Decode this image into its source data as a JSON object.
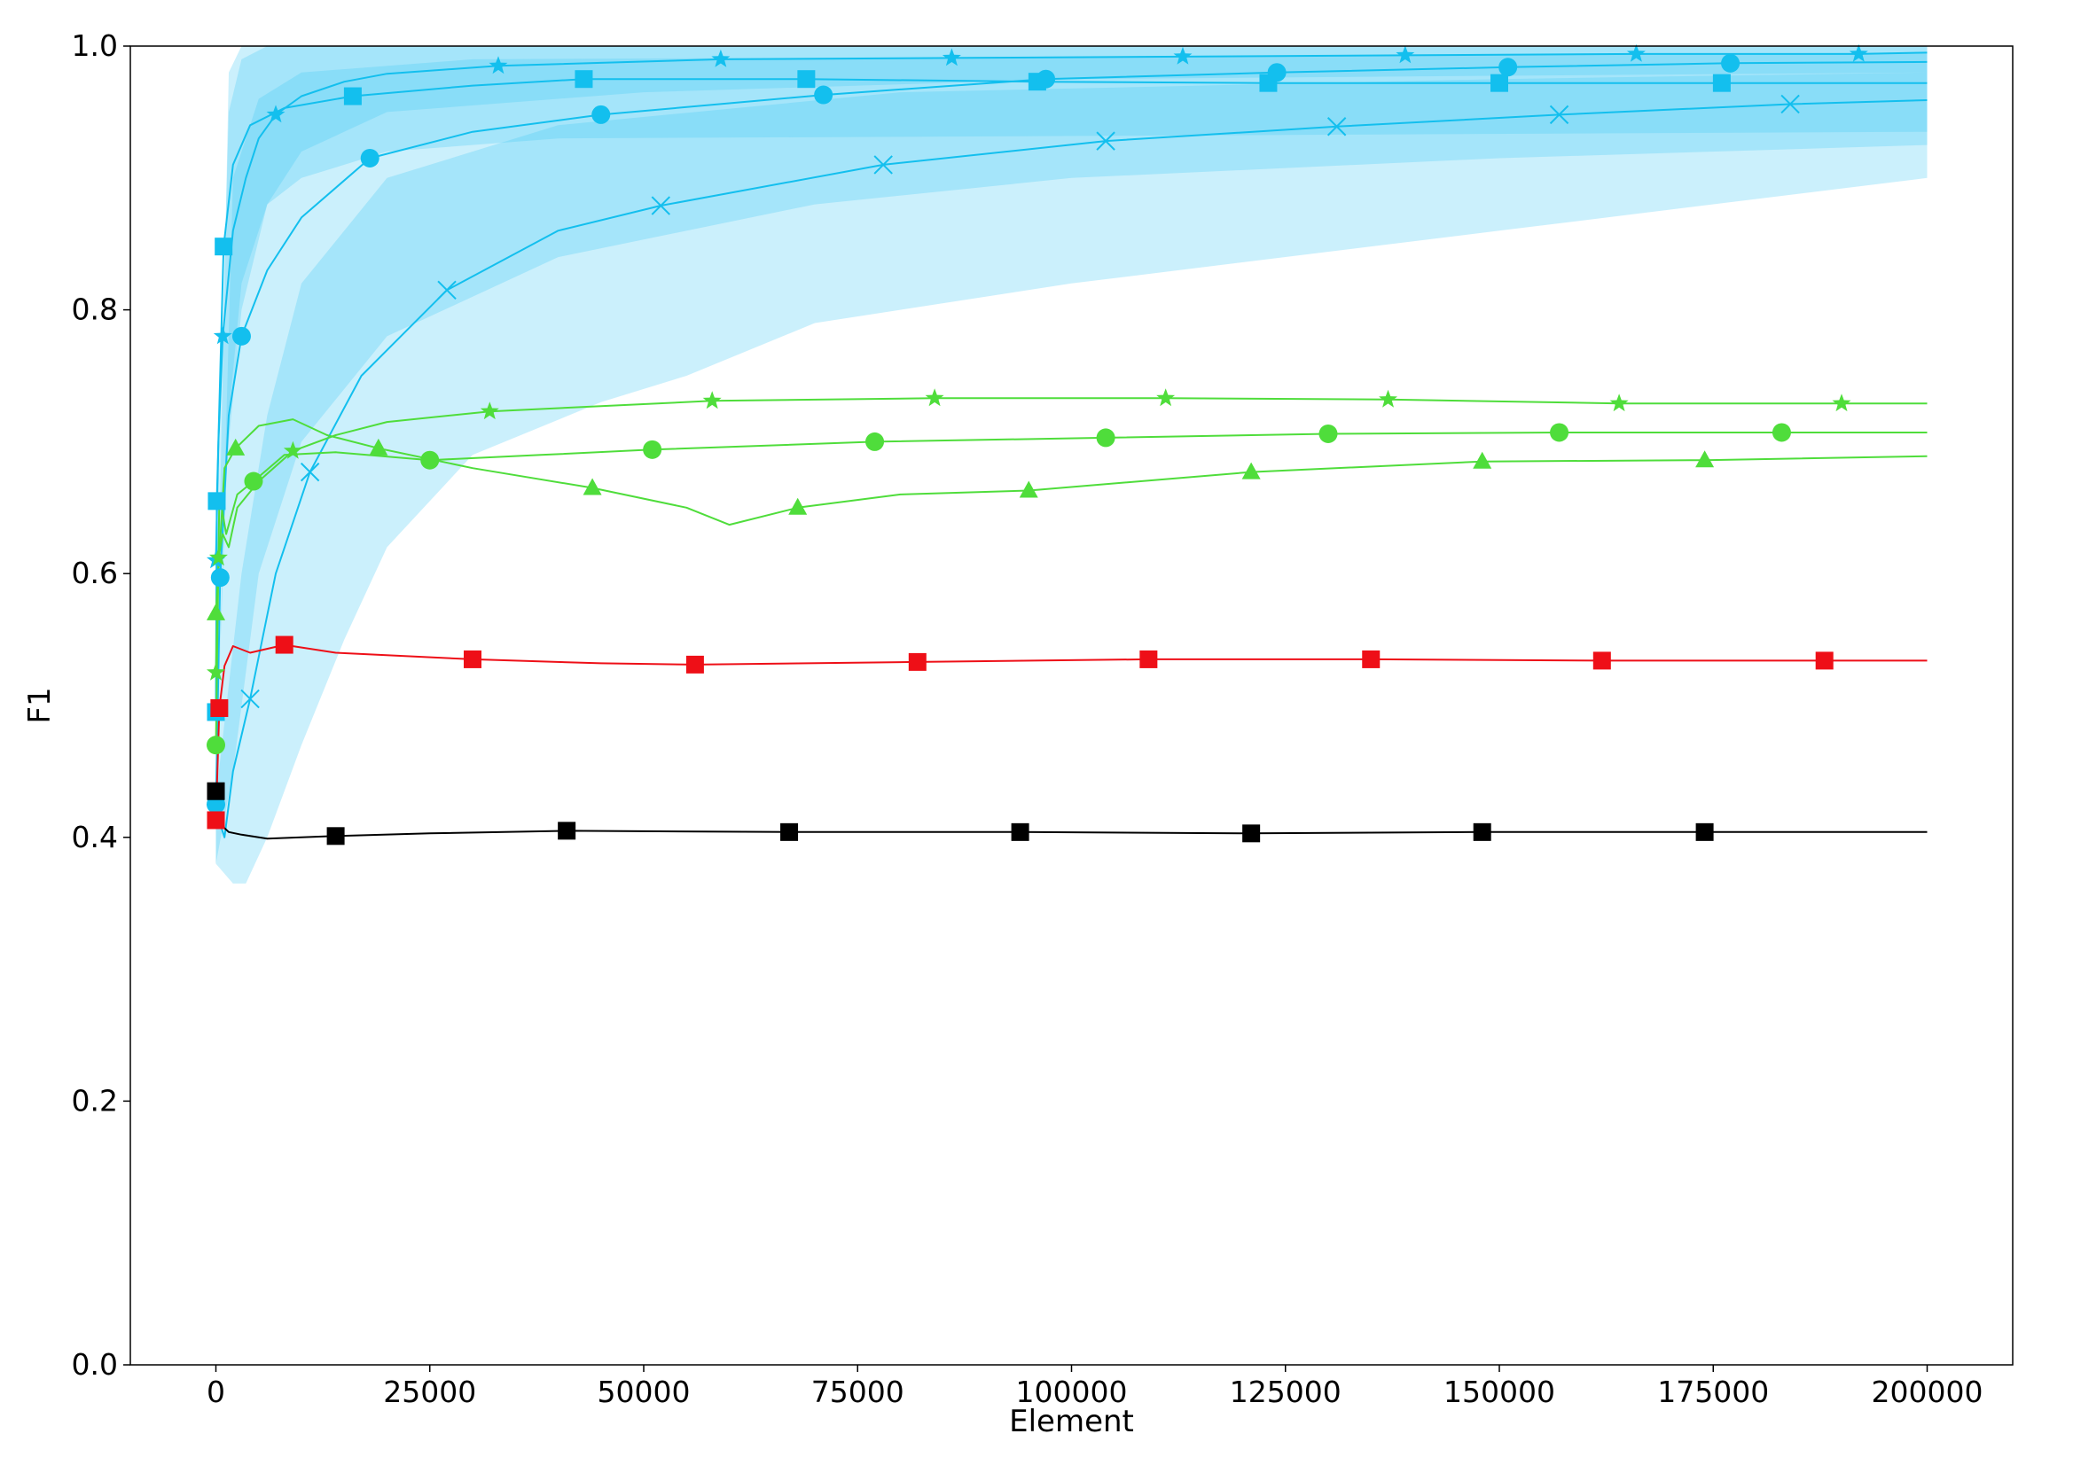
{
  "chart_data": {
    "type": "line",
    "title": "",
    "xlabel": "Element",
    "ylabel": "F1",
    "xlim": [
      -10000,
      210000
    ],
    "ylim": [
      0.0,
      1.0
    ],
    "x_ticks": [
      0,
      25000,
      50000,
      75000,
      100000,
      125000,
      150000,
      175000,
      200000
    ],
    "y_ticks": [
      0.0,
      0.2,
      0.4,
      0.6,
      0.8,
      1.0
    ],
    "x_tick_labels": [
      "0",
      "25000",
      "50000",
      "75000",
      "100000",
      "125000",
      "150000",
      "175000",
      "200000"
    ],
    "y_tick_labels": [
      "0.0",
      "0.2",
      "0.4",
      "0.6",
      "0.8",
      "1.0"
    ],
    "grid": false,
    "legend": false,
    "colors": {
      "blue": "#13bfee",
      "blue_band": "#40c8f5",
      "green": "#4fdd3b",
      "red": "#ee0f17",
      "black": "#000000"
    },
    "series": [
      {
        "color": "#13bfee",
        "marker": "star",
        "points": [
          [
            0,
            0.61
          ],
          [
            300,
            0.7
          ],
          [
            800,
            0.78
          ],
          [
            2000,
            0.86
          ],
          [
            3500,
            0.9
          ],
          [
            5000,
            0.93
          ],
          [
            7000,
            0.948
          ],
          [
            10000,
            0.962
          ],
          [
            15000,
            0.973
          ],
          [
            20000,
            0.979
          ],
          [
            33000,
            0.985
          ],
          [
            59000,
            0.99
          ],
          [
            86000,
            0.991
          ],
          [
            113000,
            0.992
          ],
          [
            139000,
            0.993
          ],
          [
            166000,
            0.994
          ],
          [
            192000,
            0.994
          ],
          [
            200000,
            0.995
          ]
        ],
        "markers_x": [
          0,
          800,
          7000,
          33000,
          59000,
          86000,
          113000,
          139000,
          166000,
          192000
        ],
        "band": {
          "upper": [
            [
              0,
              0.6
            ],
            [
              1500,
              0.95
            ],
            [
              3000,
              0.99
            ],
            [
              6000,
              1.0
            ],
            [
              200000,
              1.0
            ]
          ],
          "lower": [
            [
              0,
              0.55
            ],
            [
              1500,
              0.7
            ],
            [
              3000,
              0.8
            ],
            [
              6000,
              0.88
            ],
            [
              10000,
              0.92
            ],
            [
              20000,
              0.95
            ],
            [
              50000,
              0.965
            ],
            [
              100000,
              0.975
            ],
            [
              200000,
              0.98
            ]
          ]
        }
      },
      {
        "color": "#13bfee",
        "marker": "square",
        "points": [
          [
            0,
            0.495
          ],
          [
            100,
            0.655
          ],
          [
            900,
            0.848
          ],
          [
            2000,
            0.91
          ],
          [
            4000,
            0.94
          ],
          [
            8000,
            0.953
          ],
          [
            16000,
            0.962
          ],
          [
            30000,
            0.97
          ],
          [
            43000,
            0.975
          ],
          [
            69000,
            0.975
          ],
          [
            96000,
            0.973
          ],
          [
            123000,
            0.972
          ],
          [
            150000,
            0.972
          ],
          [
            176000,
            0.972
          ],
          [
            200000,
            0.972
          ]
        ],
        "markers_x": [
          0,
          100,
          900,
          16000,
          43000,
          69000,
          96000,
          123000,
          150000,
          176000
        ],
        "band": {
          "upper": [
            [
              0,
              0.5
            ],
            [
              1500,
              0.98
            ],
            [
              3000,
              1.0
            ],
            [
              200000,
              1.0
            ]
          ],
          "lower": [
            [
              0,
              0.45
            ],
            [
              1500,
              0.72
            ],
            [
              3000,
              0.82
            ],
            [
              6000,
              0.88
            ],
            [
              10000,
              0.9
            ],
            [
              20000,
              0.92
            ],
            [
              40000,
              0.93
            ],
            [
              200000,
              0.935
            ]
          ]
        }
      },
      {
        "color": "#13bfee",
        "marker": "circle",
        "points": [
          [
            0,
            0.425
          ],
          [
            500,
            0.597
          ],
          [
            1500,
            0.72
          ],
          [
            3000,
            0.78
          ],
          [
            6000,
            0.83
          ],
          [
            10000,
            0.87
          ],
          [
            18000,
            0.915
          ],
          [
            30000,
            0.935
          ],
          [
            45000,
            0.948
          ],
          [
            71000,
            0.963
          ],
          [
            97000,
            0.975
          ],
          [
            124000,
            0.98
          ],
          [
            151000,
            0.984
          ],
          [
            177000,
            0.987
          ],
          [
            200000,
            0.988
          ]
        ],
        "markers_x": [
          0,
          500,
          3000,
          18000,
          45000,
          71000,
          97000,
          124000,
          151000,
          177000
        ],
        "band": {
          "upper": [
            [
              0,
              0.43
            ],
            [
              2000,
              0.9
            ],
            [
              5000,
              0.96
            ],
            [
              10000,
              0.98
            ],
            [
              30000,
              0.99
            ],
            [
              200000,
              0.995
            ]
          ],
          "lower": [
            [
              0,
              0.38
            ],
            [
              2000,
              0.45
            ],
            [
              5000,
              0.6
            ],
            [
              10000,
              0.7
            ],
            [
              20000,
              0.78
            ],
            [
              40000,
              0.84
            ],
            [
              70000,
              0.88
            ],
            [
              100000,
              0.9
            ],
            [
              150000,
              0.915
            ],
            [
              200000,
              0.925
            ]
          ]
        }
      },
      {
        "color": "#13bfee",
        "marker": "x",
        "points": [
          [
            0,
            0.42
          ],
          [
            1000,
            0.4
          ],
          [
            2000,
            0.45
          ],
          [
            4000,
            0.505
          ],
          [
            7000,
            0.6
          ],
          [
            11000,
            0.677
          ],
          [
            17000,
            0.75
          ],
          [
            27000,
            0.815
          ],
          [
            40000,
            0.86
          ],
          [
            52000,
            0.879
          ],
          [
            78000,
            0.91
          ],
          [
            104000,
            0.928
          ],
          [
            131000,
            0.939
          ],
          [
            157000,
            0.948
          ],
          [
            184000,
            0.956
          ],
          [
            200000,
            0.959
          ]
        ],
        "markers_x": [
          4000,
          11000,
          27000,
          52000,
          78000,
          104000,
          131000,
          157000,
          184000
        ],
        "band": {
          "upper": [
            [
              0,
              0.43
            ],
            [
              3000,
              0.6
            ],
            [
              6000,
              0.72
            ],
            [
              10000,
              0.82
            ],
            [
              20000,
              0.9
            ],
            [
              40000,
              0.94
            ],
            [
              80000,
              0.965
            ],
            [
              150000,
              0.975
            ],
            [
              200000,
              0.98
            ]
          ],
          "lower": [
            [
              0,
              0.38
            ],
            [
              2000,
              0.365
            ],
            [
              3500,
              0.365
            ],
            [
              6000,
              0.4
            ],
            [
              10000,
              0.47
            ],
            [
              15000,
              0.55
            ],
            [
              20000,
              0.62
            ],
            [
              30000,
              0.69
            ],
            [
              45000,
              0.73
            ],
            [
              55000,
              0.75
            ],
            [
              70000,
              0.79
            ],
            [
              100000,
              0.82
            ],
            [
              150000,
              0.86
            ],
            [
              200000,
              0.9
            ]
          ]
        }
      },
      {
        "color": "#4fdd3b",
        "marker": "star",
        "points": [
          [
            0,
            0.525
          ],
          [
            300,
            0.612
          ],
          [
            800,
            0.63
          ],
          [
            1500,
            0.62
          ],
          [
            2500,
            0.65
          ],
          [
            5000,
            0.67
          ],
          [
            9000,
            0.693
          ],
          [
            14000,
            0.705
          ],
          [
            20000,
            0.715
          ],
          [
            32000,
            0.723
          ],
          [
            45000,
            0.727
          ],
          [
            58000,
            0.731
          ],
          [
            84000,
            0.733
          ],
          [
            111000,
            0.733
          ],
          [
            137000,
            0.732
          ],
          [
            164000,
            0.729
          ],
          [
            190000,
            0.729
          ],
          [
            200000,
            0.729
          ]
        ],
        "markers_x": [
          0,
          300,
          9000,
          32000,
          58000,
          84000,
          111000,
          137000,
          164000,
          190000
        ]
      },
      {
        "color": "#4fdd3b",
        "marker": "circle",
        "points": [
          [
            0,
            0.47
          ],
          [
            400,
            0.66
          ],
          [
            1200,
            0.63
          ],
          [
            2500,
            0.66
          ],
          [
            4400,
            0.67
          ],
          [
            8000,
            0.69
          ],
          [
            14000,
            0.692
          ],
          [
            25000,
            0.686
          ],
          [
            38000,
            0.69
          ],
          [
            51000,
            0.694
          ],
          [
            77000,
            0.7
          ],
          [
            104000,
            0.703
          ],
          [
            130000,
            0.706
          ],
          [
            157000,
            0.707
          ],
          [
            183000,
            0.707
          ],
          [
            200000,
            0.707
          ]
        ],
        "markers_x": [
          0,
          4400,
          25000,
          51000,
          77000,
          104000,
          130000,
          157000,
          183000
        ]
      },
      {
        "color": "#4fdd3b",
        "marker": "triangle",
        "points": [
          [
            0,
            0.57
          ],
          [
            1000,
            0.68
          ],
          [
            2300,
            0.695
          ],
          [
            5000,
            0.712
          ],
          [
            9000,
            0.717
          ],
          [
            13000,
            0.705
          ],
          [
            19000,
            0.695
          ],
          [
            30000,
            0.68
          ],
          [
            44000,
            0.665
          ],
          [
            55000,
            0.65
          ],
          [
            60000,
            0.637
          ],
          [
            68000,
            0.65
          ],
          [
            80000,
            0.66
          ],
          [
            95000,
            0.663
          ],
          [
            121000,
            0.677
          ],
          [
            148000,
            0.685
          ],
          [
            174000,
            0.686
          ],
          [
            200000,
            0.689
          ]
        ],
        "markers_x": [
          0,
          2300,
          19000,
          44000,
          68000,
          95000,
          121000,
          148000,
          174000
        ]
      },
      {
        "color": "#ee0f17",
        "marker": "square",
        "points": [
          [
            0,
            0.413
          ],
          [
            400,
            0.498
          ],
          [
            1000,
            0.53
          ],
          [
            2000,
            0.545
          ],
          [
            4000,
            0.54
          ],
          [
            8000,
            0.546
          ],
          [
            14000,
            0.54
          ],
          [
            30000,
            0.535
          ],
          [
            45000,
            0.532
          ],
          [
            56000,
            0.531
          ],
          [
            82000,
            0.533
          ],
          [
            109000,
            0.535
          ],
          [
            135000,
            0.535
          ],
          [
            162000,
            0.534
          ],
          [
            188000,
            0.534
          ],
          [
            200000,
            0.534
          ]
        ],
        "markers_x": [
          0,
          400,
          8000,
          30000,
          56000,
          82000,
          109000,
          135000,
          162000,
          188000
        ]
      },
      {
        "color": "#000000",
        "marker": "square",
        "points": [
          [
            0,
            0.435
          ],
          [
            500,
            0.41
          ],
          [
            1500,
            0.404
          ],
          [
            3000,
            0.402
          ],
          [
            6000,
            0.399
          ],
          [
            14000,
            0.401
          ],
          [
            25000,
            0.403
          ],
          [
            41000,
            0.405
          ],
          [
            67000,
            0.404
          ],
          [
            94000,
            0.404
          ],
          [
            121000,
            0.403
          ],
          [
            148000,
            0.404
          ],
          [
            174000,
            0.404
          ],
          [
            200000,
            0.404
          ]
        ],
        "markers_x": [
          0,
          14000,
          41000,
          67000,
          94000,
          121000,
          148000,
          174000
        ]
      }
    ]
  }
}
